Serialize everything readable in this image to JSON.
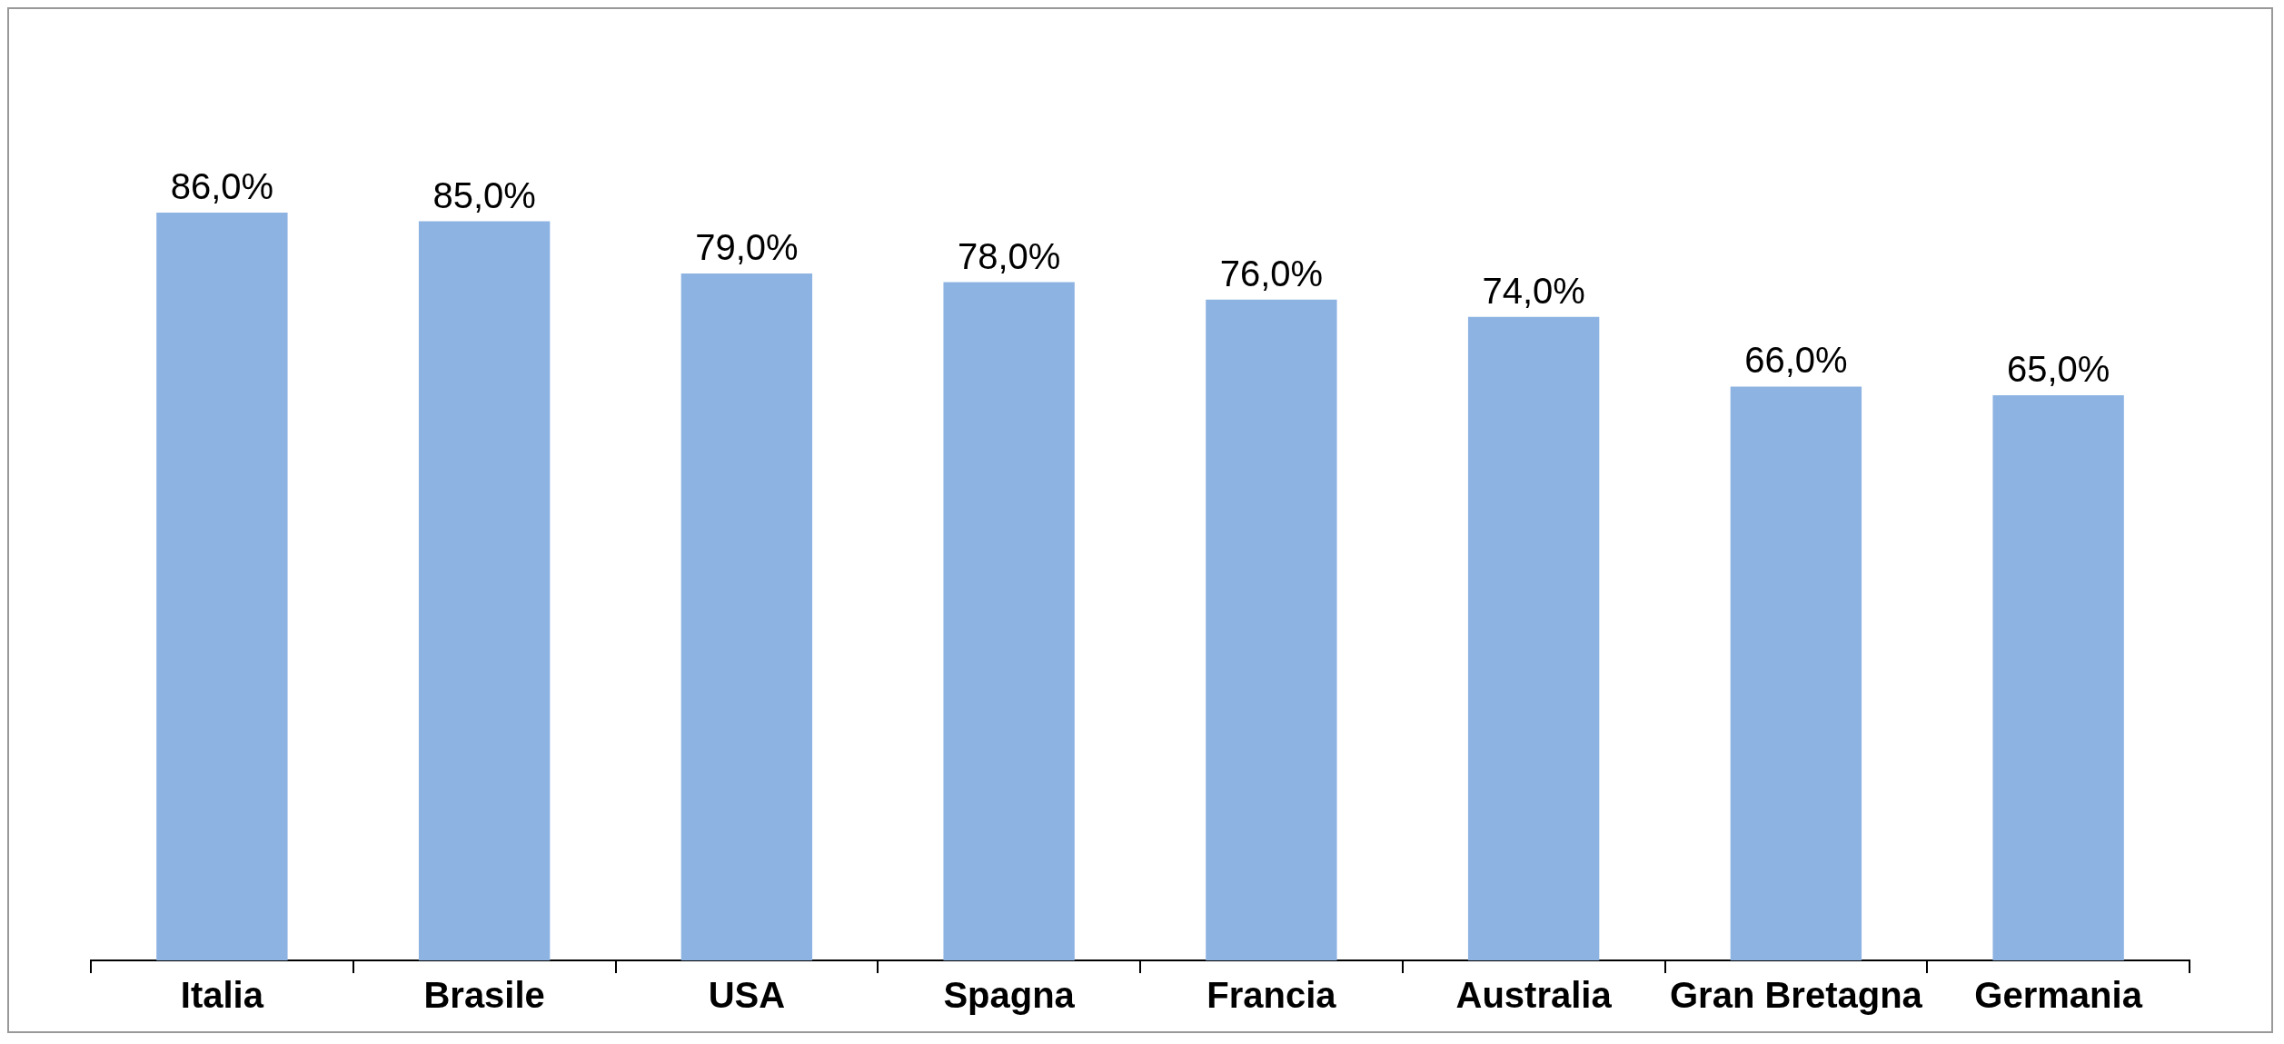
{
  "chart_data": {
    "type": "bar",
    "categories": [
      "Italia",
      "Brasile",
      "USA",
      "Spagna",
      "Francia",
      "Australia",
      "Gran Bretagna",
      "Germania"
    ],
    "values": [
      86,
      85,
      79,
      78,
      76,
      74,
      66,
      65
    ],
    "value_labels": [
      "86,0%",
      "85,0%",
      "79,0%",
      "78,0%",
      "76,0%",
      "74,0%",
      "66,0%",
      "65,0%"
    ],
    "color": "#8db3e2",
    "grid": false,
    "legend": false
  }
}
